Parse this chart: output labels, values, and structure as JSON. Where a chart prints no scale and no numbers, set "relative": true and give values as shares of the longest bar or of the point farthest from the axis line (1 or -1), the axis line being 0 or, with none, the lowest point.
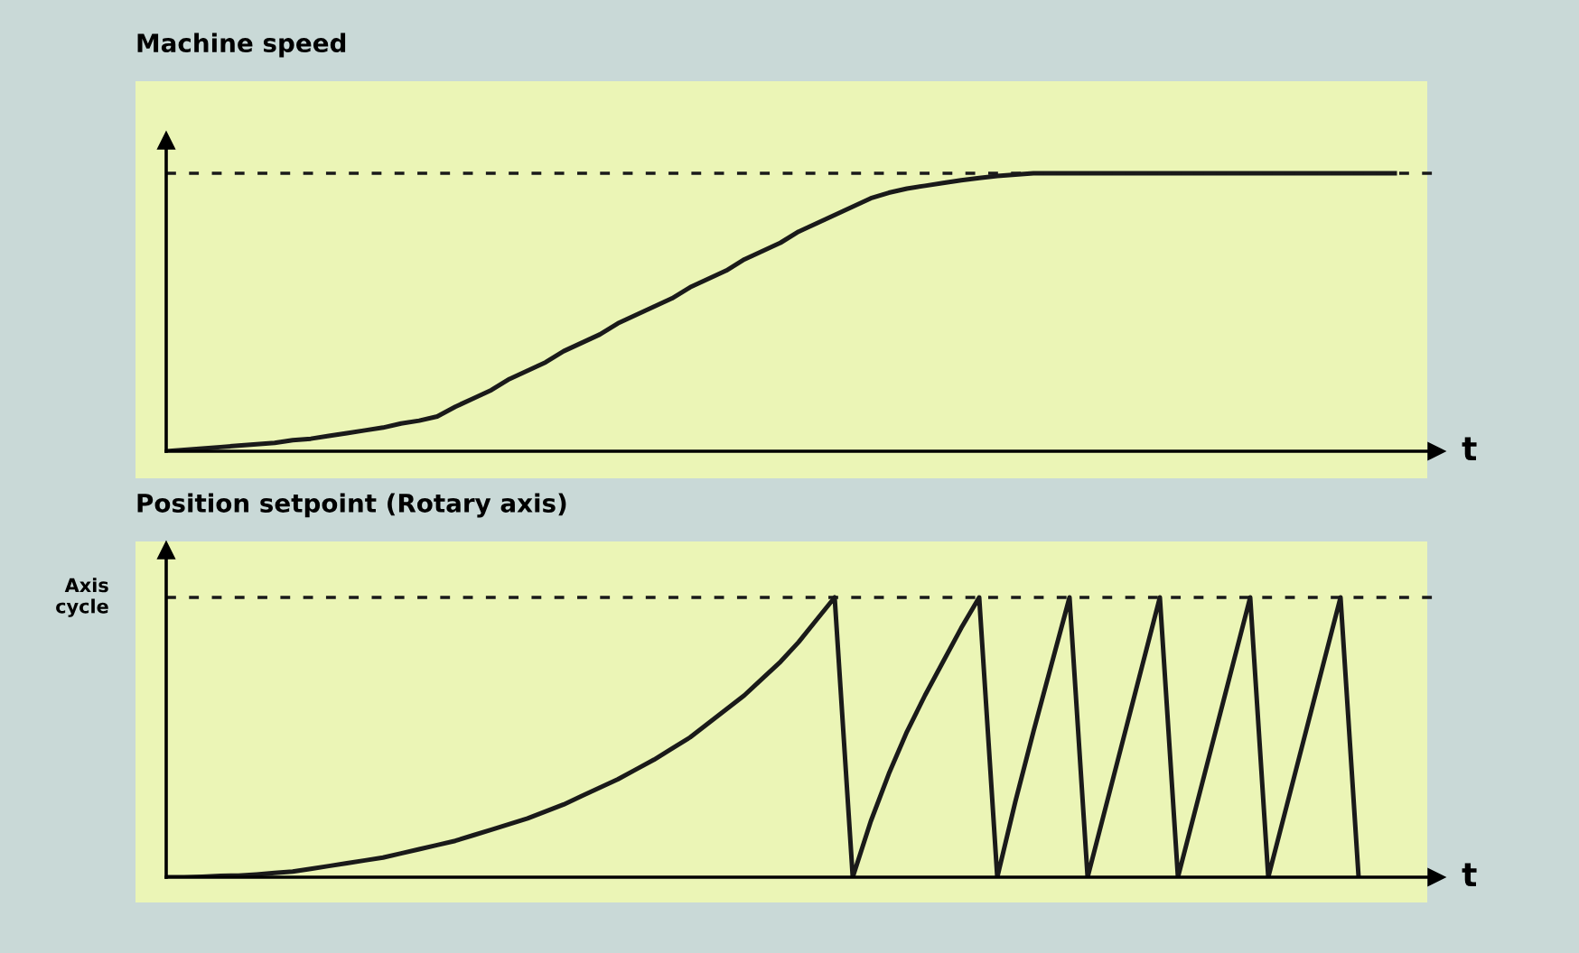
{
  "chart_data": [
    {
      "type": "line",
      "title": "Machine speed",
      "xlabel": "t",
      "relative": true,
      "legend": false,
      "marker": "none",
      "line_style": "solid",
      "categories": [
        null,
        null,
        null,
        null,
        null,
        null,
        null,
        null,
        null,
        null,
        null,
        null,
        null,
        null,
        null,
        null,
        null,
        null,
        null,
        null,
        null,
        null,
        null,
        null,
        null,
        null,
        null,
        null,
        null,
        null,
        null,
        null,
        null,
        null,
        null,
        null,
        null,
        null,
        null,
        null,
        null,
        null,
        null,
        null,
        null,
        null,
        null,
        null,
        null,
        null,
        null,
        null,
        null,
        null,
        null,
        null,
        null,
        null,
        null,
        null,
        null,
        null,
        null,
        null,
        null,
        null,
        null,
        null,
        null
      ],
      "series": [
        {
          "color": "#1a1a1a",
          "values": [
            0,
            0.005,
            0.01,
            0.015,
            0.02,
            0.025,
            0.03,
            0.04,
            0.045,
            0.055,
            0.065,
            0.075,
            0.085,
            0.1,
            0.11,
            0.125,
            0.16,
            0.19,
            0.22,
            0.26,
            0.29,
            0.32,
            0.36,
            0.39,
            0.42,
            0.46,
            0.49,
            0.52,
            0.55,
            0.59,
            0.62,
            0.65,
            0.69,
            0.72,
            0.75,
            0.79,
            0.82,
            0.85,
            0.88,
            0.91,
            0.93,
            0.945,
            0.955,
            0.965,
            0.975,
            0.983,
            0.99,
            0.995,
            1,
            1,
            1,
            1,
            1,
            1,
            1,
            1,
            1,
            1,
            1,
            1,
            1,
            1,
            1,
            1,
            1,
            1,
            1,
            1,
            1
          ]
        }
      ],
      "ref_lines": [
        {
          "axis": "y",
          "value": 1,
          "color": "#1a1a1a",
          "line_style": "dashed"
        }
      ]
    },
    {
      "type": "line",
      "title": "Position setpoint (Rotary axis)",
      "xlabel": "t",
      "relative": true,
      "legend": false,
      "marker": "none",
      "line_style": "solid",
      "categories": [
        null,
        null,
        null,
        null,
        null,
        null,
        null,
        null,
        null,
        null,
        null,
        null,
        null,
        null,
        null,
        null,
        null,
        null,
        null,
        null,
        null,
        null,
        null,
        null,
        null,
        null,
        null,
        null,
        null,
        null,
        null,
        null,
        null,
        null,
        null,
        null,
        null,
        null,
        null,
        null,
        null,
        null,
        null,
        null,
        null,
        null,
        null,
        null,
        null,
        null,
        null,
        null,
        null,
        null,
        null,
        null,
        null,
        null,
        null,
        null,
        null,
        null,
        null,
        null,
        null,
        null,
        null,
        null,
        null
      ],
      "series": [
        {
          "color": "#1a1a1a",
          "values": [
            0,
            0,
            0.002,
            0.005,
            0.006,
            0.01,
            0.015,
            0.02,
            0.03,
            0.04,
            0.05,
            0.06,
            0.07,
            0.085,
            0.1,
            0.115,
            0.13,
            0.15,
            0.17,
            0.19,
            0.21,
            0.235,
            0.26,
            0.29,
            0.32,
            0.35,
            0.385,
            0.42,
            0.46,
            0.5,
            0.55,
            0.6,
            0.65,
            0.71,
            0.77,
            0.84,
            0.92,
            1,
            0,
            0.2,
            0.37,
            0.52,
            0.65,
            0.77,
            0.89,
            1,
            0,
            0.27,
            0.52,
            0.76,
            1,
            0,
            0.25,
            0.5,
            0.75,
            1,
            0,
            0.25,
            0.5,
            0.75,
            1,
            0,
            0.25,
            0.5,
            0.75,
            1,
            0,
            null,
            null
          ]
        }
      ],
      "ref_lines": [
        {
          "axis": "y",
          "value": 1,
          "label": "Axis\ncycle",
          "color": "#1a1a1a",
          "line_style": "dashed"
        }
      ]
    }
  ]
}
